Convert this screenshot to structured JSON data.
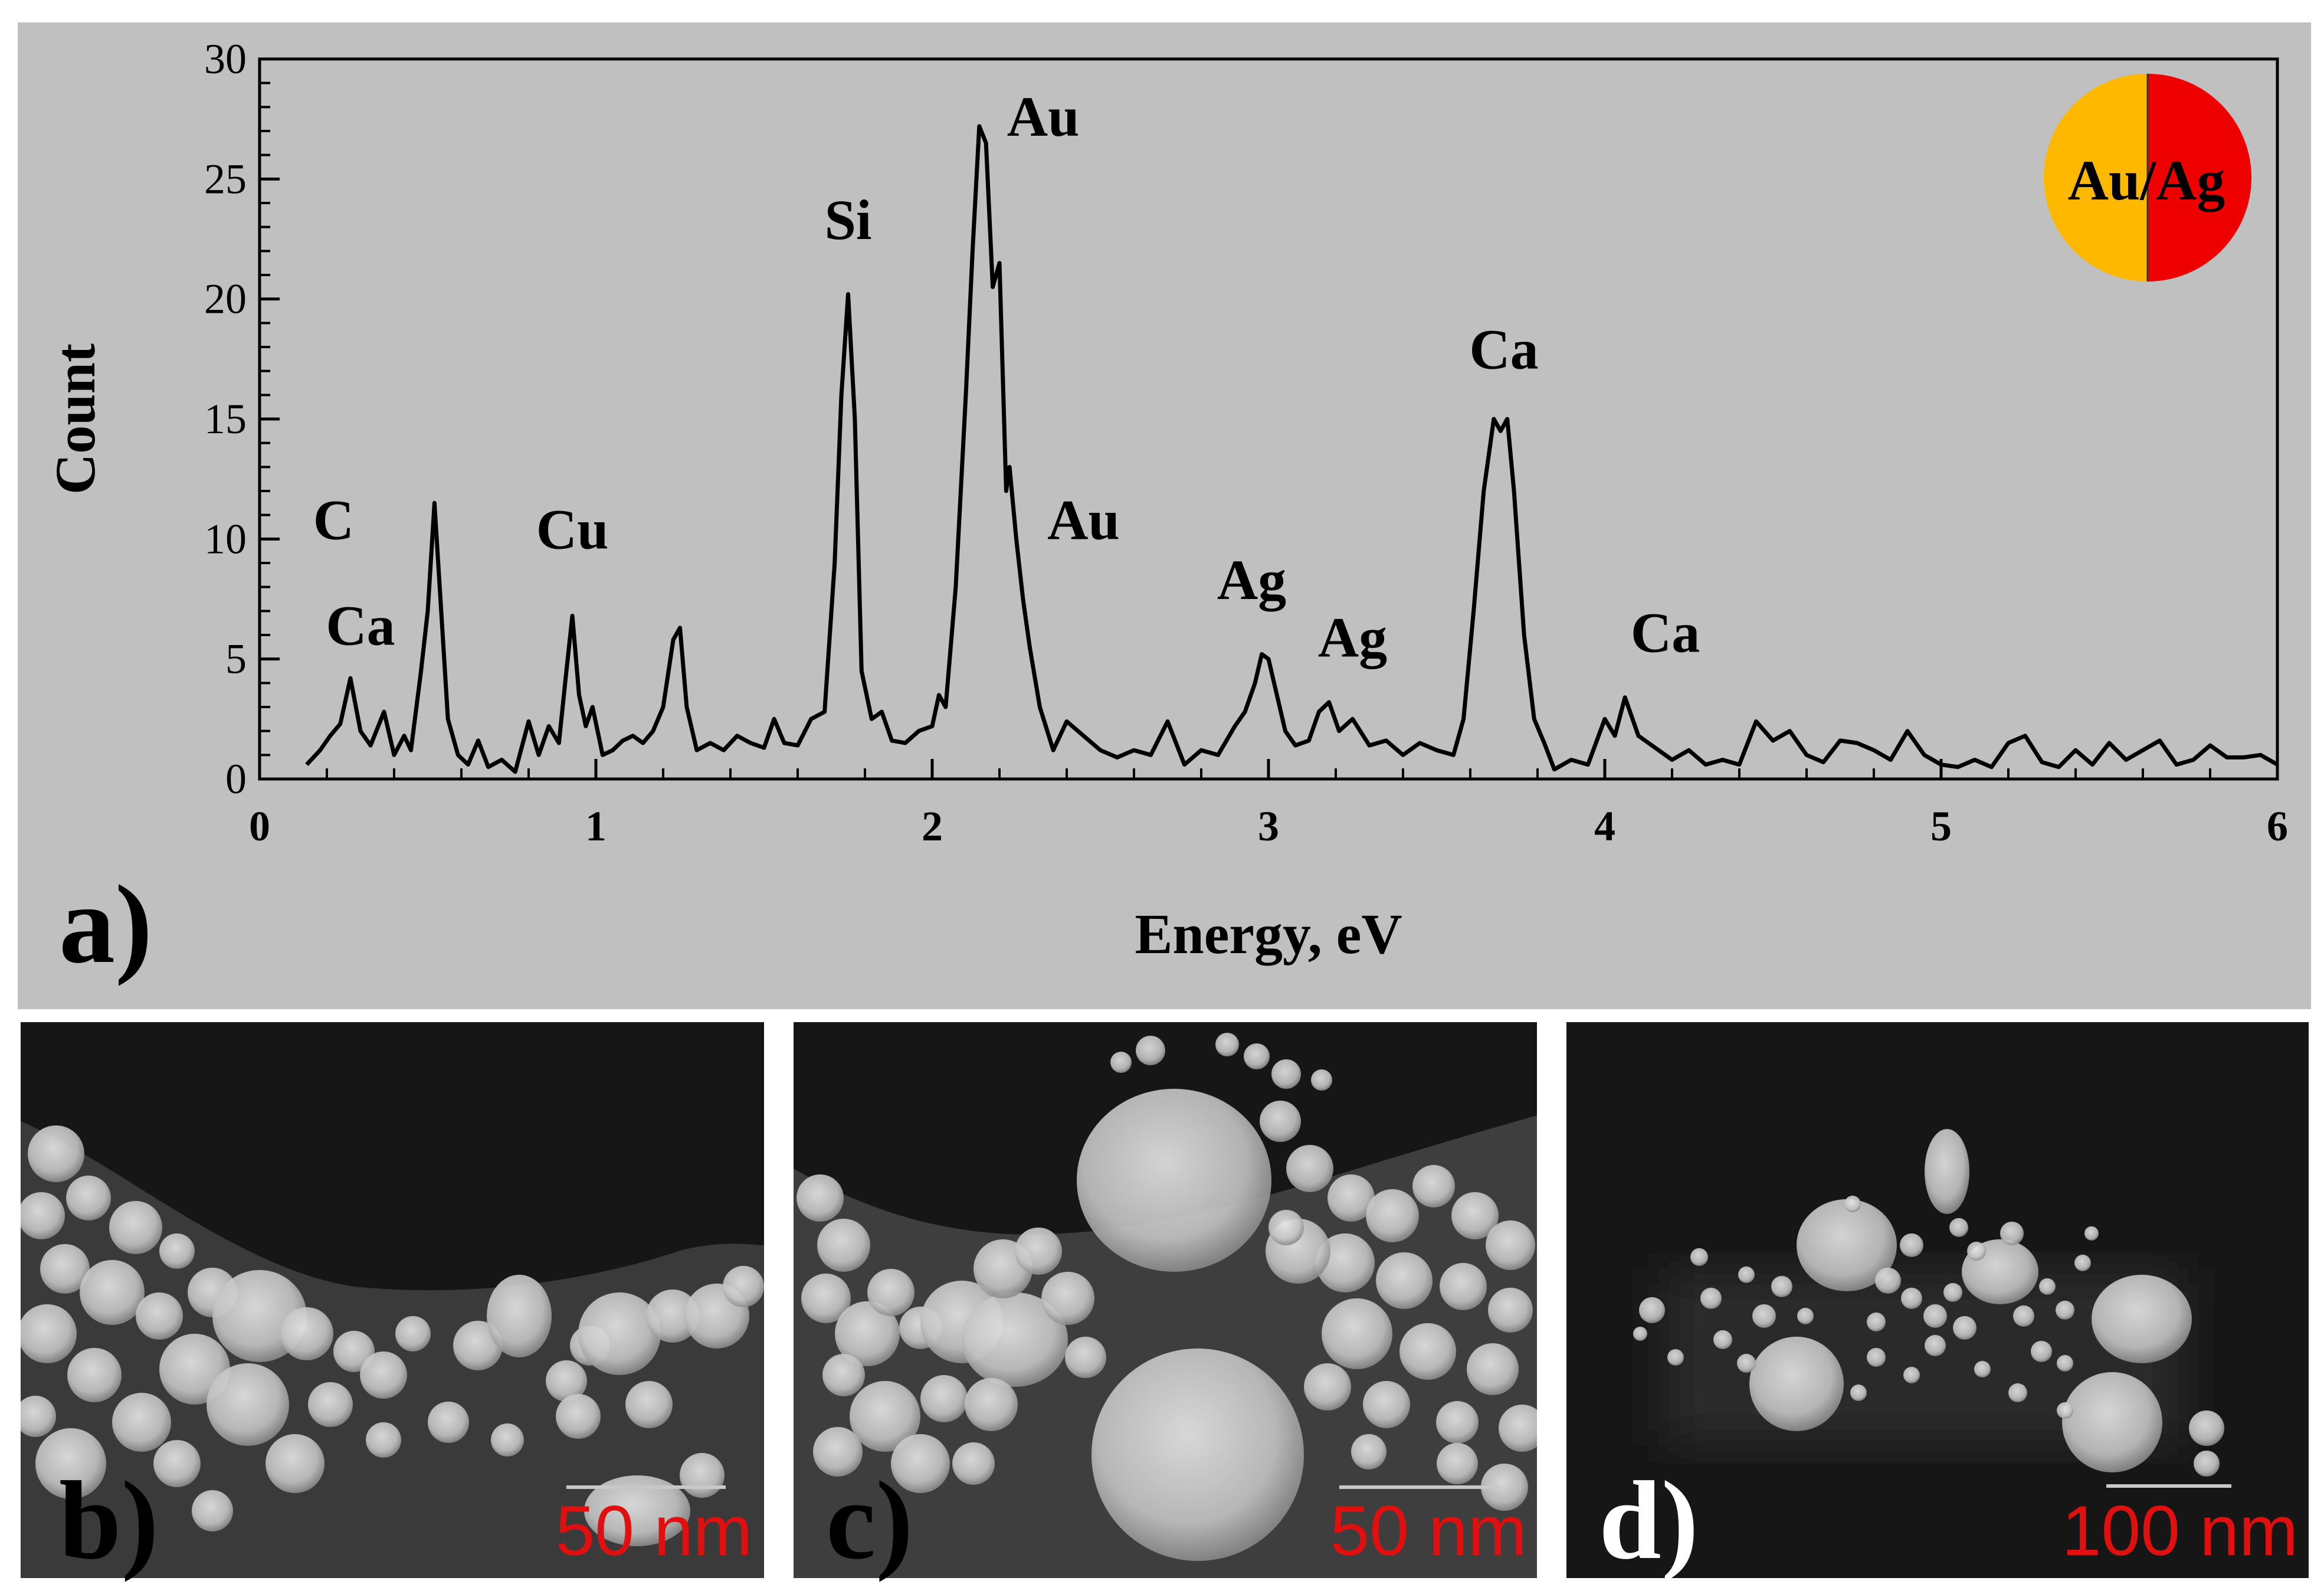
{
  "chart_data": {
    "type": "line",
    "panel_label": "a)",
    "xlabel": "Energy, eV",
    "ylabel": "Count",
    "xlim": [
      0,
      6
    ],
    "ylim": [
      0,
      30
    ],
    "x_ticks": [
      "0",
      "1",
      "2",
      "3",
      "4",
      "5",
      "6"
    ],
    "y_ticks": [
      "0",
      "5",
      "10",
      "15",
      "20",
      "25",
      "30"
    ],
    "grid": false,
    "inset_legend": {
      "text": "Au/Ag",
      "colors": [
        "#FFB800",
        "#EE0000"
      ]
    },
    "peak_labels": [
      {
        "label": "C",
        "x": 0.22,
        "y": 10.0
      },
      {
        "label": "Ca",
        "x": 0.3,
        "y": 5.6
      },
      {
        "label": "Cu",
        "x": 0.93,
        "y": 9.6
      },
      {
        "label": "Si",
        "x": 1.75,
        "y": 22.5
      },
      {
        "label": "Au",
        "x": 2.33,
        "y": 26.8
      },
      {
        "label": "Au",
        "x": 2.45,
        "y": 10.0
      },
      {
        "label": "Ag",
        "x": 2.95,
        "y": 7.5
      },
      {
        "label": "Ag",
        "x": 3.25,
        "y": 5.1
      },
      {
        "label": "Ca",
        "x": 3.7,
        "y": 17.1
      },
      {
        "label": "Ca",
        "x": 4.18,
        "y": 5.3
      }
    ],
    "series": [
      {
        "x": [
          0.14,
          0.18,
          0.21,
          0.24,
          0.27,
          0.3,
          0.33,
          0.37,
          0.4,
          0.43,
          0.45,
          0.48,
          0.5,
          0.52,
          0.54,
          0.56,
          0.59,
          0.62,
          0.65,
          0.68,
          0.72,
          0.76,
          0.8,
          0.83,
          0.86,
          0.89,
          0.91,
          0.93,
          0.95,
          0.97,
          0.99,
          1.02,
          1.05,
          1.08,
          1.11,
          1.14,
          1.17,
          1.2,
          1.23,
          1.25,
          1.27,
          1.3,
          1.34,
          1.38,
          1.42,
          1.46,
          1.5,
          1.53,
          1.56,
          1.6,
          1.64,
          1.68,
          1.71,
          1.73,
          1.75,
          1.77,
          1.79,
          1.82,
          1.85,
          1.88,
          1.92,
          1.96,
          2.0,
          2.02,
          2.04,
          2.07,
          2.1,
          2.12,
          2.14,
          2.16,
          2.18,
          2.2,
          2.22,
          2.23,
          2.25,
          2.27,
          2.29,
          2.32,
          2.36,
          2.4,
          2.45,
          2.5,
          2.55,
          2.6,
          2.65,
          2.7,
          2.75,
          2.8,
          2.85,
          2.9,
          2.93,
          2.96,
          2.98,
          3.0,
          3.02,
          3.05,
          3.08,
          3.12,
          3.15,
          3.18,
          3.21,
          3.25,
          3.3,
          3.35,
          3.4,
          3.45,
          3.5,
          3.55,
          3.58,
          3.61,
          3.64,
          3.67,
          3.69,
          3.71,
          3.73,
          3.76,
          3.79,
          3.82,
          3.85,
          3.9,
          3.95,
          4.0,
          4.03,
          4.06,
          4.1,
          4.15,
          4.2,
          4.25,
          4.3,
          4.35,
          4.4,
          4.45,
          4.5,
          4.55,
          4.6,
          4.65,
          4.7,
          4.75,
          4.8,
          4.85,
          4.9,
          4.95,
          5.0,
          5.05,
          5.1,
          5.15,
          5.2,
          5.25,
          5.3,
          5.35,
          5.4,
          5.45,
          5.5,
          5.55,
          5.6,
          5.65,
          5.7,
          5.75,
          5.8,
          5.85,
          5.9,
          5.95,
          6.0
        ],
        "y": [
          0.6,
          1.2,
          1.8,
          2.3,
          4.2,
          2.0,
          1.4,
          2.8,
          1.0,
          1.8,
          1.2,
          4.5,
          7.0,
          11.5,
          7.0,
          2.5,
          1.0,
          0.6,
          1.6,
          0.5,
          0.8,
          0.3,
          2.4,
          1.0,
          2.2,
          1.5,
          4.2,
          6.8,
          3.5,
          2.2,
          3.0,
          1.0,
          1.2,
          1.6,
          1.8,
          1.5,
          2.0,
          3.0,
          5.8,
          6.3,
          3.0,
          1.2,
          1.5,
          1.2,
          1.8,
          1.5,
          1.3,
          2.5,
          1.5,
          1.4,
          2.5,
          2.8,
          9.0,
          16.0,
          20.2,
          15.0,
          4.5,
          2.5,
          2.8,
          1.6,
          1.5,
          2.0,
          2.2,
          3.5,
          3.0,
          8.0,
          16.0,
          22.0,
          27.2,
          26.5,
          20.5,
          21.5,
          12.0,
          13.0,
          10.0,
          7.5,
          5.5,
          3.0,
          1.2,
          2.4,
          1.8,
          1.2,
          0.9,
          1.2,
          1.0,
          2.4,
          0.6,
          1.2,
          1.0,
          2.2,
          2.8,
          4.0,
          5.2,
          5.0,
          3.8,
          2.0,
          1.4,
          1.6,
          2.8,
          3.2,
          2.0,
          2.5,
          1.4,
          1.6,
          1.0,
          1.5,
          1.2,
          1.0,
          2.5,
          7.0,
          12.0,
          15.0,
          14.5,
          15.0,
          12.0,
          6.0,
          2.5,
          1.5,
          0.4,
          0.8,
          0.6,
          2.5,
          1.8,
          3.4,
          1.8,
          1.3,
          0.8,
          1.2,
          0.6,
          0.8,
          0.6,
          2.4,
          1.6,
          2.0,
          1.0,
          0.7,
          1.6,
          1.5,
          1.2,
          0.8,
          2.0,
          1.0,
          0.6,
          0.5,
          0.8,
          0.5,
          1.5,
          1.8,
          0.7,
          0.5,
          1.2,
          0.6,
          1.5,
          0.8,
          1.2,
          1.6,
          0.6,
          0.8,
          1.4,
          0.9,
          0.9,
          1.0,
          0.6
        ]
      }
    ]
  },
  "micrographs": [
    {
      "label": "b)",
      "scale_bar": "50 nm"
    },
    {
      "label": "c)",
      "scale_bar": "50 nm"
    },
    {
      "label": "d)",
      "scale_bar": "100 nm"
    }
  ],
  "colors": {
    "panel_background": "#C0C0C0",
    "spectrum_line": "#000000",
    "scale_text": "#E01010",
    "micrograph_background": "#161616"
  }
}
